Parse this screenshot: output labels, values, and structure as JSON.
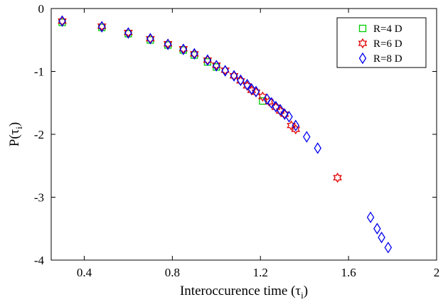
{
  "chart_data": {
    "type": "scatter",
    "xlabel": "Interoccurence time (τ",
    "xlabel_sub": "i",
    "xlabel_close": ")",
    "ylabel": "P(τ",
    "ylabel_sub": "i",
    "ylabel_close": ")",
    "xlim": [
      0.25,
      2.0
    ],
    "ylim": [
      -4,
      0
    ],
    "xticks": [
      0.4,
      0.8,
      1.2,
      1.6,
      2.0
    ],
    "xtick_labels": [
      "0.4",
      "0.8",
      "1.2",
      "1.6",
      "2"
    ],
    "yticks": [
      0,
      -1,
      -2,
      -3,
      -4
    ],
    "ytick_labels": [
      "0",
      "-1",
      "-2",
      "-3",
      "-4"
    ],
    "grid": false,
    "legend_position": "top-right",
    "series": [
      {
        "name": "R=4 D",
        "marker": "square",
        "color": "#00cc00",
        "points": [
          [
            0.3,
            -0.22
          ],
          [
            0.48,
            -0.3
          ],
          [
            0.6,
            -0.4
          ],
          [
            0.7,
            -0.5
          ],
          [
            0.78,
            -0.58
          ],
          [
            0.85,
            -0.66
          ],
          [
            0.9,
            -0.74
          ],
          [
            0.96,
            -0.85
          ],
          [
            1.0,
            -0.93
          ],
          [
            1.21,
            -1.47
          ]
        ]
      },
      {
        "name": "R=6 D",
        "marker": "hexagram",
        "color": "#e00000",
        "points": [
          [
            0.3,
            -0.2
          ],
          [
            0.48,
            -0.28
          ],
          [
            0.6,
            -0.38
          ],
          [
            0.7,
            -0.48
          ],
          [
            0.78,
            -0.56
          ],
          [
            0.85,
            -0.64
          ],
          [
            0.9,
            -0.72
          ],
          [
            0.96,
            -0.82
          ],
          [
            1.0,
            -0.9
          ],
          [
            1.04,
            -0.98
          ],
          [
            1.08,
            -1.07
          ],
          [
            1.11,
            -1.15
          ],
          [
            1.14,
            -1.23
          ],
          [
            1.16,
            -1.3
          ],
          [
            1.18,
            -1.33
          ],
          [
            1.21,
            -1.4
          ],
          [
            1.24,
            -1.48
          ],
          [
            1.27,
            -1.57
          ],
          [
            1.29,
            -1.63
          ],
          [
            1.31,
            -1.68
          ],
          [
            1.34,
            -1.86
          ],
          [
            1.36,
            -1.92
          ],
          [
            1.55,
            -2.69
          ]
        ]
      },
      {
        "name": "R=8 D",
        "marker": "diamond",
        "color": "#0000ee",
        "points": [
          [
            0.3,
            -0.2
          ],
          [
            0.48,
            -0.29
          ],
          [
            0.6,
            -0.39
          ],
          [
            0.7,
            -0.48
          ],
          [
            0.78,
            -0.57
          ],
          [
            0.85,
            -0.65
          ],
          [
            0.9,
            -0.72
          ],
          [
            0.96,
            -0.82
          ],
          [
            1.0,
            -0.91
          ],
          [
            1.04,
            -0.99
          ],
          [
            1.08,
            -1.07
          ],
          [
            1.11,
            -1.14
          ],
          [
            1.14,
            -1.21
          ],
          [
            1.16,
            -1.28
          ],
          [
            1.18,
            -1.32
          ],
          [
            1.23,
            -1.44
          ],
          [
            1.25,
            -1.5
          ],
          [
            1.27,
            -1.56
          ],
          [
            1.29,
            -1.61
          ],
          [
            1.31,
            -1.68
          ],
          [
            1.33,
            -1.72
          ],
          [
            1.36,
            -1.86
          ],
          [
            1.41,
            -2.04
          ],
          [
            1.46,
            -2.22
          ],
          [
            1.7,
            -3.32
          ],
          [
            1.73,
            -3.5
          ],
          [
            1.75,
            -3.64
          ],
          [
            1.78,
            -3.8
          ]
        ]
      }
    ]
  }
}
